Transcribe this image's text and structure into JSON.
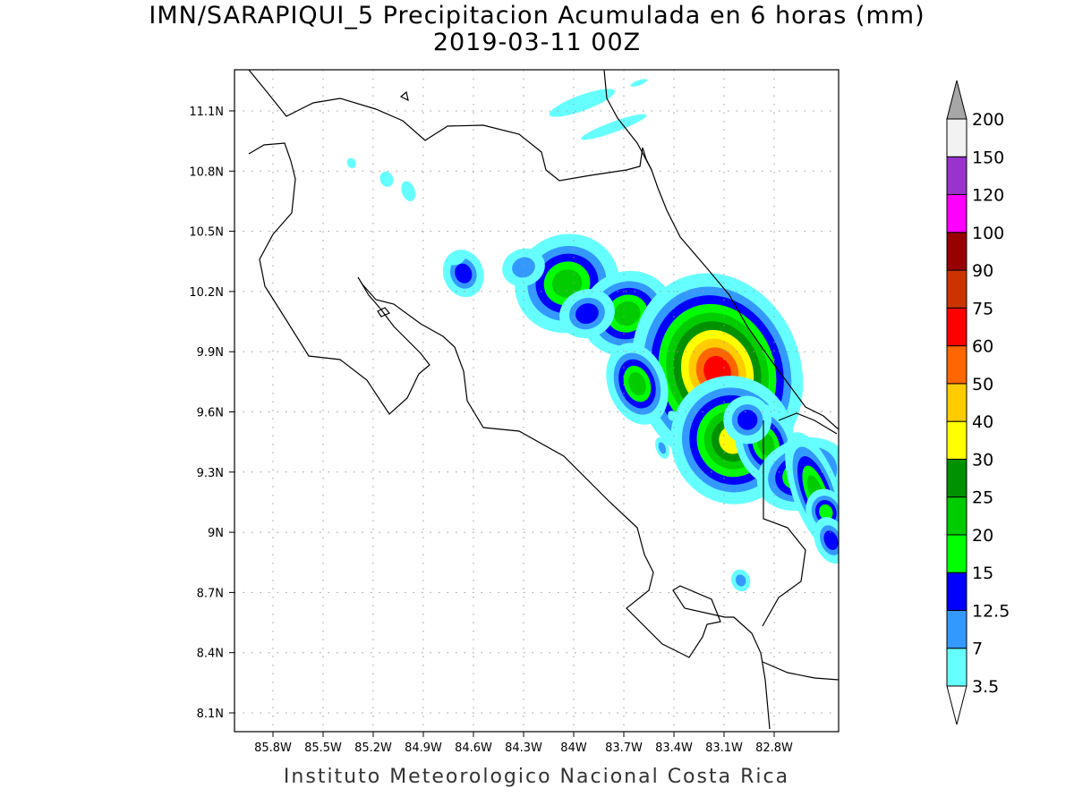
{
  "title": {
    "line1": "IMN/SARAPIQUI_5 Precipitacion Acumulada en 6 horas (mm)",
    "line2": "2019-03-11 00Z"
  },
  "footer": "Instituto Meteorologico Nacional Costa Rica",
  "map": {
    "lon_range": [
      -86.0,
      -82.5
    ],
    "lat_range": [
      8.0,
      11.3
    ],
    "lon_ticks": [
      {
        "v": -85.8,
        "label": "85.8W"
      },
      {
        "v": -85.5,
        "label": "85.5W"
      },
      {
        "v": -85.2,
        "label": "85.2W"
      },
      {
        "v": -84.9,
        "label": "84.9W"
      },
      {
        "v": -84.6,
        "label": "84.6W"
      },
      {
        "v": -84.3,
        "label": "84.3W"
      },
      {
        "v": -84.0,
        "label": "84W"
      },
      {
        "v": -83.7,
        "label": "83.7W"
      },
      {
        "v": -83.4,
        "label": "83.4W"
      },
      {
        "v": -83.1,
        "label": "83.1W"
      },
      {
        "v": -82.8,
        "label": "82.8W"
      }
    ],
    "lat_ticks": [
      {
        "v": 11.1,
        "label": "11.1N"
      },
      {
        "v": 10.8,
        "label": "10.8N"
      },
      {
        "v": 10.5,
        "label": "10.5N"
      },
      {
        "v": 10.2,
        "label": "10.2N"
      },
      {
        "v": 9.9,
        "label": "9.9N"
      },
      {
        "v": 9.6,
        "label": "9.6N"
      },
      {
        "v": 9.3,
        "label": "9.3N"
      },
      {
        "v": 9.0,
        "label": "9N"
      },
      {
        "v": 8.7,
        "label": "8.7N"
      },
      {
        "v": 8.4,
        "label": "8.4N"
      },
      {
        "v": 8.1,
        "label": "8.1N"
      }
    ],
    "cells": [
      {
        "lon": -84.04,
        "lat": 10.24,
        "rx": 0.09,
        "ry": 0.07,
        "level": 5
      },
      {
        "lon": -83.68,
        "lat": 10.09,
        "rx": 0.08,
        "ry": 0.06,
        "level": 5
      },
      {
        "lon": -83.92,
        "lat": 10.09,
        "rx": 0.07,
        "ry": 0.05,
        "level": 3
      },
      {
        "lon": -84.66,
        "lat": 10.29,
        "rx": 0.05,
        "ry": 0.05,
        "level": 3
      },
      {
        "lon": -84.3,
        "lat": 10.32,
        "rx": 0.07,
        "ry": 0.05,
        "level": 2
      },
      {
        "lon": -83.44,
        "lat": 9.89,
        "rx": 0.07,
        "ry": 0.05,
        "level": 3
      },
      {
        "lon": -83.3,
        "lat": 9.88,
        "rx": 0.09,
        "ry": 0.06,
        "level": 5
      },
      {
        "lon": -83.14,
        "lat": 9.8,
        "rx": 0.08,
        "ry": 0.08,
        "level": 10
      },
      {
        "lon": -83.62,
        "lat": 9.74,
        "rx": 0.05,
        "ry": 0.06,
        "level": 5
      },
      {
        "lon": -83.05,
        "lat": 9.46,
        "rx": 0.08,
        "ry": 0.07,
        "level": 7
      },
      {
        "lon": -82.85,
        "lat": 9.44,
        "rx": 0.05,
        "ry": 0.06,
        "level": 5
      },
      {
        "lon": -82.96,
        "lat": 9.56,
        "rx": 0.06,
        "ry": 0.05,
        "level": 3
      },
      {
        "lon": -82.63,
        "lat": 9.29,
        "rx": 0.08,
        "ry": 0.05,
        "level": 5
      },
      {
        "lon": -82.55,
        "lat": 9.2,
        "rx": 0.04,
        "ry": 0.09,
        "level": 5
      },
      {
        "lon": -82.49,
        "lat": 9.1,
        "rx": 0.04,
        "ry": 0.04,
        "level": 4
      },
      {
        "lon": -82.46,
        "lat": 8.96,
        "rx": 0.04,
        "ry": 0.05,
        "level": 3
      },
      {
        "lon": -83.0,
        "lat": 8.76,
        "rx": 0.03,
        "ry": 0.03,
        "level": 2
      },
      {
        "lon": -83.47,
        "lat": 9.42,
        "rx": 0.02,
        "ry": 0.03,
        "level": 2
      },
      {
        "lon": -83.41,
        "lat": 9.58,
        "rx": 0.02,
        "ry": 0.02,
        "level": 1
      },
      {
        "lon": -83.95,
        "lat": 11.14,
        "rx": 0.16,
        "ry": 0.03,
        "level": 1
      },
      {
        "lon": -83.76,
        "lat": 11.02,
        "rx": 0.16,
        "ry": 0.02,
        "level": 1
      },
      {
        "lon": -84.99,
        "lat": 10.7,
        "rx": 0.03,
        "ry": 0.04,
        "level": 1
      },
      {
        "lon": -85.12,
        "lat": 10.76,
        "rx": 0.03,
        "ry": 0.03,
        "level": 1
      },
      {
        "lon": -85.33,
        "lat": 10.84,
        "rx": 0.02,
        "ry": 0.02,
        "level": 1
      },
      {
        "lon": -83.61,
        "lat": 11.24,
        "rx": 0.04,
        "ry": 0.01,
        "level": 1
      },
      {
        "lon": -84.7,
        "lat": 10.36,
        "rx": 0.04,
        "ry": 0.02,
        "level": 1
      }
    ]
  },
  "colorbar": {
    "labels": [
      "3.5",
      "7",
      "12.5",
      "15",
      "20",
      "25",
      "30",
      "40",
      "50",
      "60",
      "75",
      "90",
      "100",
      "120",
      "150",
      "200"
    ],
    "colors": [
      "#66ffff",
      "#3399ff",
      "#0000ff",
      "#00ff00",
      "#00cc00",
      "#009100",
      "#ffff00",
      "#ffcc00",
      "#ff6600",
      "#ff0000",
      "#cc3300",
      "#990000",
      "#ff00ff",
      "#9933cc",
      "#f2f2f2"
    ],
    "over_color": "#a6a6a6",
    "under_color": "#ffffff"
  }
}
